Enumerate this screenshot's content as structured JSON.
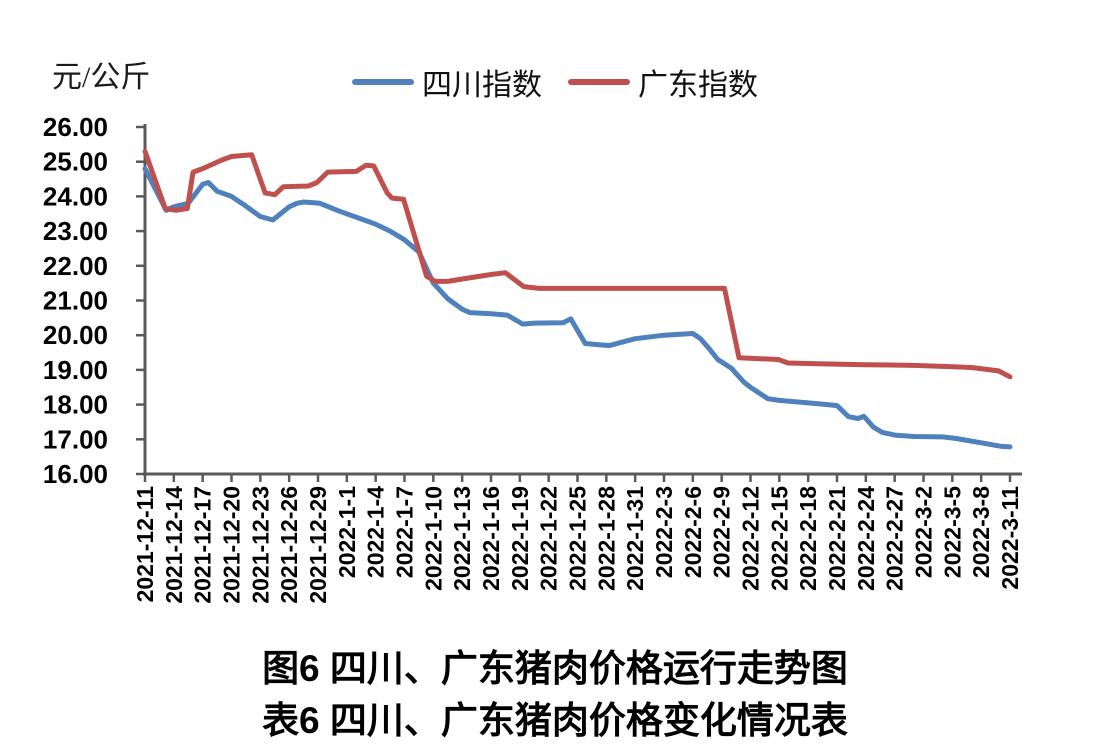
{
  "figure": {
    "unit_label": "元/公斤",
    "caption_chart": "图6 四川、广东猪肉价格运行走势图",
    "caption_table": "表6 四川、广东猪肉价格变化情况表"
  },
  "chart_data": {
    "type": "line",
    "title": "",
    "unit": "元/公斤",
    "grid": false,
    "legend_position": "top-center",
    "ylim": [
      16,
      26
    ],
    "ytick_labels": [
      "26.00",
      "25.00",
      "24.00",
      "23.00",
      "22.00",
      "21.00",
      "20.00",
      "19.00",
      "18.00",
      "17.00",
      "16.00"
    ],
    "x_day_span": 90,
    "xtick_interval_days": 3,
    "xtick_labels": [
      "2021-12-11",
      "2021-12-14",
      "2021-12-17",
      "2021-12-20",
      "2021-12-23",
      "2021-12-26",
      "2021-12-29",
      "2022-1-1",
      "2022-1-4",
      "2022-1-7",
      "2022-1-10",
      "2022-1-13",
      "2022-1-16",
      "2022-1-19",
      "2022-1-22",
      "2022-1-25",
      "2022-1-28",
      "2022-1-31",
      "2022-2-3",
      "2022-2-6",
      "2022-2-9",
      "2022-2-12",
      "2022-2-15",
      "2022-2-18",
      "2022-2-21",
      "2022-2-24",
      "2022-2-27",
      "2022-3-2",
      "2022-3-5",
      "2022-3-8",
      "2022-3-11"
    ],
    "axis_color": "#595959",
    "label_color": "#000000",
    "legend": [
      {
        "name": "四川指数",
        "color": "#4F81BD"
      },
      {
        "name": "广东指数",
        "color": "#C0504D"
      }
    ],
    "series": [
      {
        "name": "四川指数",
        "color": "#4F81BD",
        "points_day_value": [
          [
            0,
            24.8
          ],
          [
            2.2,
            23.6
          ],
          [
            3,
            23.7
          ],
          [
            4.5,
            23.8
          ],
          [
            6,
            24.35
          ],
          [
            6.6,
            24.4
          ],
          [
            7.5,
            24.15
          ],
          [
            9,
            24.0
          ],
          [
            10.5,
            23.72
          ],
          [
            12,
            23.42
          ],
          [
            13.3,
            23.32
          ],
          [
            15,
            23.7
          ],
          [
            15.8,
            23.8
          ],
          [
            16.5,
            23.84
          ],
          [
            18.2,
            23.8
          ],
          [
            20,
            23.6
          ],
          [
            21,
            23.5
          ],
          [
            22.5,
            23.35
          ],
          [
            24,
            23.2
          ],
          [
            25.5,
            23.0
          ],
          [
            27,
            22.75
          ],
          [
            28.5,
            22.4
          ],
          [
            30,
            21.5
          ],
          [
            31.5,
            21.05
          ],
          [
            33,
            20.75
          ],
          [
            33.8,
            20.65
          ],
          [
            36,
            20.62
          ],
          [
            37.7,
            20.58
          ],
          [
            39.3,
            20.32
          ],
          [
            40.5,
            20.35
          ],
          [
            43.5,
            20.36
          ],
          [
            44.3,
            20.47
          ],
          [
            45.8,
            19.76
          ],
          [
            48.3,
            19.7
          ],
          [
            51,
            19.9
          ],
          [
            54,
            20.0
          ],
          [
            57,
            20.05
          ],
          [
            57.8,
            19.9
          ],
          [
            58.8,
            19.58
          ],
          [
            59.6,
            19.3
          ],
          [
            61,
            19.05
          ],
          [
            62.3,
            18.65
          ],
          [
            63,
            18.5
          ],
          [
            64.8,
            18.17
          ],
          [
            66,
            18.12
          ],
          [
            69,
            18.05
          ],
          [
            71,
            18.0
          ],
          [
            72,
            17.97
          ],
          [
            73.2,
            17.65
          ],
          [
            74.2,
            17.6
          ],
          [
            74.8,
            17.66
          ],
          [
            75.8,
            17.35
          ],
          [
            76.7,
            17.2
          ],
          [
            78,
            17.12
          ],
          [
            80,
            17.08
          ],
          [
            83,
            17.07
          ],
          [
            84.5,
            17.02
          ],
          [
            87,
            16.9
          ],
          [
            89,
            16.8
          ],
          [
            90,
            16.78
          ]
        ]
      },
      {
        "name": "广东指数",
        "color": "#C0504D",
        "points_day_value": [
          [
            0,
            25.3
          ],
          [
            2.1,
            23.65
          ],
          [
            3.2,
            23.6
          ],
          [
            4.4,
            23.65
          ],
          [
            5,
            24.7
          ],
          [
            6,
            24.8
          ],
          [
            8,
            25.05
          ],
          [
            9,
            25.15
          ],
          [
            11.1,
            25.2
          ],
          [
            12.5,
            24.1
          ],
          [
            13.5,
            24.05
          ],
          [
            14.4,
            24.28
          ],
          [
            17,
            24.3
          ],
          [
            17.9,
            24.4
          ],
          [
            19,
            24.7
          ],
          [
            22,
            24.72
          ],
          [
            23,
            24.9
          ],
          [
            23.8,
            24.88
          ],
          [
            25.2,
            24.1
          ],
          [
            25.7,
            23.95
          ],
          [
            26.9,
            23.92
          ],
          [
            29.3,
            21.7
          ],
          [
            30.2,
            21.55
          ],
          [
            31.5,
            21.55
          ],
          [
            33,
            21.62
          ],
          [
            36,
            21.75
          ],
          [
            37.5,
            21.8
          ],
          [
            39.4,
            21.4
          ],
          [
            41,
            21.35
          ],
          [
            60.3,
            21.35
          ],
          [
            61.8,
            19.35
          ],
          [
            65.9,
            19.3
          ],
          [
            66.9,
            19.2
          ],
          [
            70,
            19.18
          ],
          [
            75,
            19.15
          ],
          [
            80,
            19.13
          ],
          [
            83,
            19.1
          ],
          [
            86,
            19.07
          ],
          [
            88.8,
            18.97
          ],
          [
            90,
            18.8
          ]
        ]
      }
    ]
  }
}
